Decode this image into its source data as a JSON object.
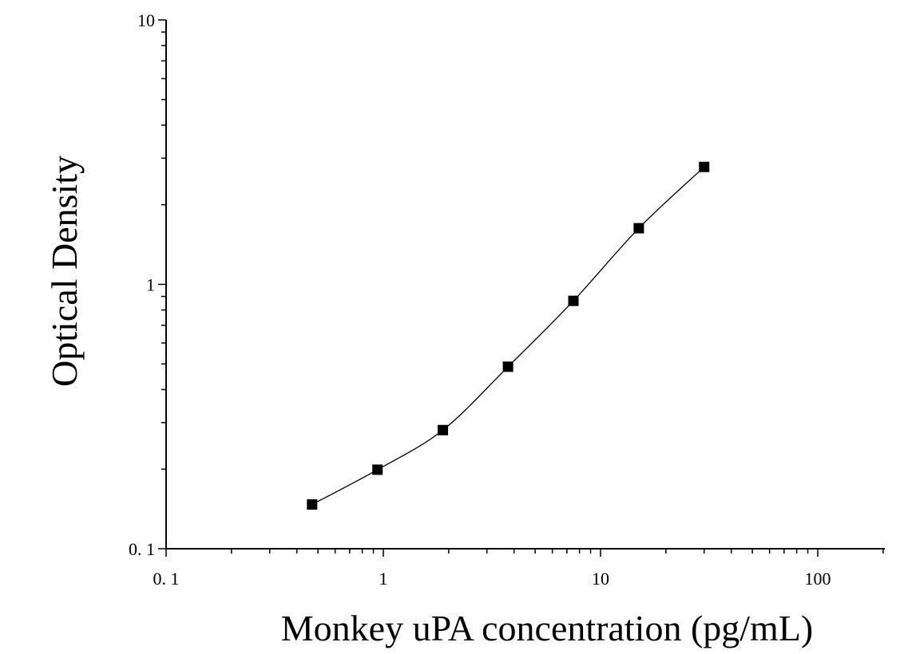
{
  "chart_data": {
    "type": "scatter",
    "title": "",
    "xlabel": "Monkey uPA concentration (pg/mL)",
    "ylabel": "Optical Density",
    "xscale": "log",
    "yscale": "log",
    "xlim": [
      0.1,
      200
    ],
    "ylim": [
      0.1,
      10
    ],
    "x_tick_labels": [
      {
        "value": 0.1,
        "label": "0. 1"
      },
      {
        "value": 1,
        "label": "1"
      },
      {
        "value": 10,
        "label": "10"
      },
      {
        "value": 100,
        "label": "100"
      }
    ],
    "y_tick_labels": [
      {
        "value": 0.1,
        "label": "0. 1"
      },
      {
        "value": 1,
        "label": "1"
      },
      {
        "value": 10,
        "label": "10"
      }
    ],
    "grid": false,
    "legend": "none",
    "marker": "square",
    "series": [
      {
        "x": [
          0.47,
          0.94,
          1.88,
          3.75,
          7.5,
          15,
          30
        ],
        "y": [
          0.147,
          0.199,
          0.281,
          0.488,
          0.866,
          1.63,
          2.78
        ]
      }
    ],
    "fit": "smooth curve through points"
  }
}
